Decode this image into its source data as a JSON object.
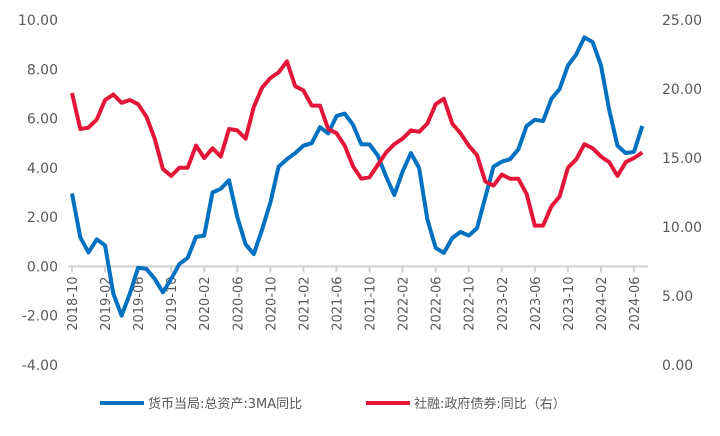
{
  "chart_data": {
    "type": "line",
    "title": "",
    "x_start": "2018-10",
    "x": [
      "2018-10",
      "2018-11",
      "2018-12",
      "2019-01",
      "2019-02",
      "2019-03",
      "2019-04",
      "2019-05",
      "2019-06",
      "2019-07",
      "2019-08",
      "2019-09",
      "2019-10",
      "2019-11",
      "2019-12",
      "2020-01",
      "2020-02",
      "2020-03",
      "2020-04",
      "2020-05",
      "2020-06",
      "2020-07",
      "2020-08",
      "2020-09",
      "2020-10",
      "2020-11",
      "2020-12",
      "2021-01",
      "2021-02",
      "2021-03",
      "2021-04",
      "2021-05",
      "2021-06",
      "2021-07",
      "2021-08",
      "2021-09",
      "2021-10",
      "2021-11",
      "2021-12",
      "2022-01",
      "2022-02",
      "2022-03",
      "2022-04",
      "2022-05",
      "2022-06",
      "2022-07",
      "2022-08",
      "2022-09",
      "2022-10",
      "2022-11",
      "2022-12",
      "2023-01",
      "2023-02",
      "2023-03",
      "2023-04",
      "2023-05",
      "2023-06",
      "2023-07",
      "2023-08",
      "2023-09",
      "2023-10",
      "2023-11",
      "2023-12",
      "2024-01",
      "2024-02",
      "2024-03",
      "2024-04",
      "2024-05",
      "2024-06",
      "2024-07"
    ],
    "x_tick_labels": [
      "2018-10",
      "2019-02",
      "2019-06",
      "2019-10",
      "2020-02",
      "2020-06",
      "2020-10",
      "2021-02",
      "2021-06",
      "2021-10",
      "2022-02",
      "2022-06",
      "2022-10",
      "2023-02",
      "2023-06",
      "2023-10",
      "2024-02",
      "2024-06"
    ],
    "left_axis": {
      "ylim": [
        -4,
        10
      ],
      "ticks": [
        "-4.00",
        "-2.00",
        "0.00",
        "2.00",
        "4.00",
        "6.00",
        "8.00",
        "10.00"
      ]
    },
    "right_axis": {
      "ylim": [
        0,
        25
      ],
      "ticks": [
        "0.00",
        "5.00",
        "10.00",
        "15.00",
        "20.00",
        "25.00"
      ]
    },
    "series": [
      {
        "name": "货币当局:总资产:3MA同比",
        "axis": "left",
        "color": "#0070C0",
        "values": [
          2.96,
          1.18,
          0.57,
          1.1,
          0.85,
          -1.1,
          -2.0,
          -1.1,
          -0.05,
          -0.1,
          -0.5,
          -1.05,
          -0.5,
          0.1,
          0.35,
          1.2,
          1.25,
          3.0,
          3.15,
          3.5,
          2.0,
          0.9,
          0.5,
          1.5,
          2.6,
          4.05,
          4.35,
          4.6,
          4.9,
          5.0,
          5.65,
          5.4,
          6.1,
          6.2,
          5.75,
          4.95,
          4.95,
          4.5,
          3.65,
          2.9,
          3.85,
          4.6,
          4.0,
          1.9,
          0.75,
          0.55,
          1.15,
          1.4,
          1.25,
          1.55,
          2.8,
          4.05,
          4.25,
          4.35,
          4.75,
          5.7,
          5.95,
          5.9,
          6.8,
          7.2,
          8.15,
          8.6,
          9.3,
          9.1,
          8.15,
          6.35,
          4.9,
          4.6,
          4.65,
          5.7
        ]
      },
      {
        "name": "社融:政府债券:同比（右）",
        "axis": "right",
        "color": "#E3163A",
        "values": [
          19.7,
          17.1,
          17.2,
          17.8,
          19.2,
          19.6,
          19.0,
          19.2,
          18.9,
          18.0,
          16.4,
          14.2,
          13.7,
          14.3,
          14.3,
          15.9,
          15.0,
          15.7,
          15.1,
          17.1,
          17.0,
          16.4,
          18.7,
          20.1,
          20.8,
          21.2,
          22.0,
          20.2,
          19.9,
          18.8,
          18.8,
          17.1,
          16.8,
          15.9,
          14.4,
          13.5,
          13.6,
          14.5,
          15.4,
          16.0,
          16.4,
          17.0,
          16.9,
          17.5,
          18.9,
          19.3,
          17.5,
          16.8,
          15.9,
          15.2,
          13.3,
          13.0,
          13.8,
          13.5,
          13.5,
          12.4,
          10.1,
          10.1,
          11.5,
          12.2,
          14.3,
          14.9,
          16.0,
          15.7,
          15.1,
          14.7,
          13.7,
          14.7,
          15.0,
          15.4
        ]
      }
    ],
    "legend_position": "bottom",
    "grid": false
  }
}
